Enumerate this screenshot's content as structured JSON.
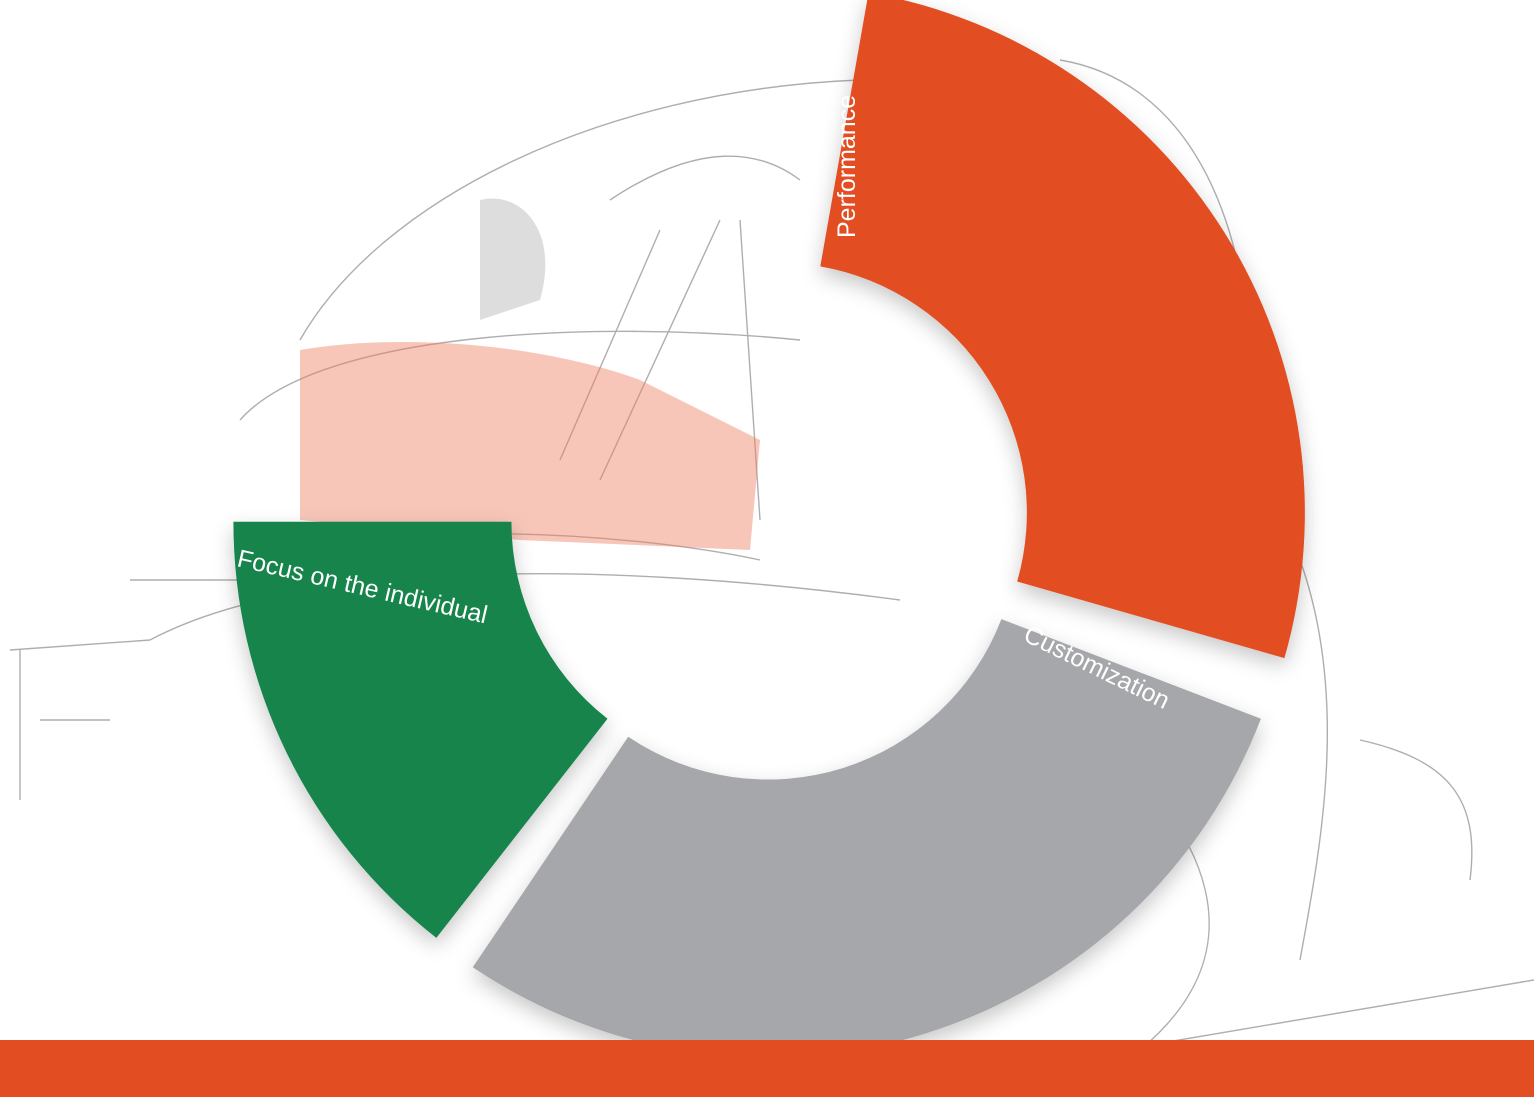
{
  "segments": [
    {
      "label": "Performance"
    },
    {
      "label": "Customization"
    },
    {
      "label": "Focus on the individual"
    }
  ]
}
